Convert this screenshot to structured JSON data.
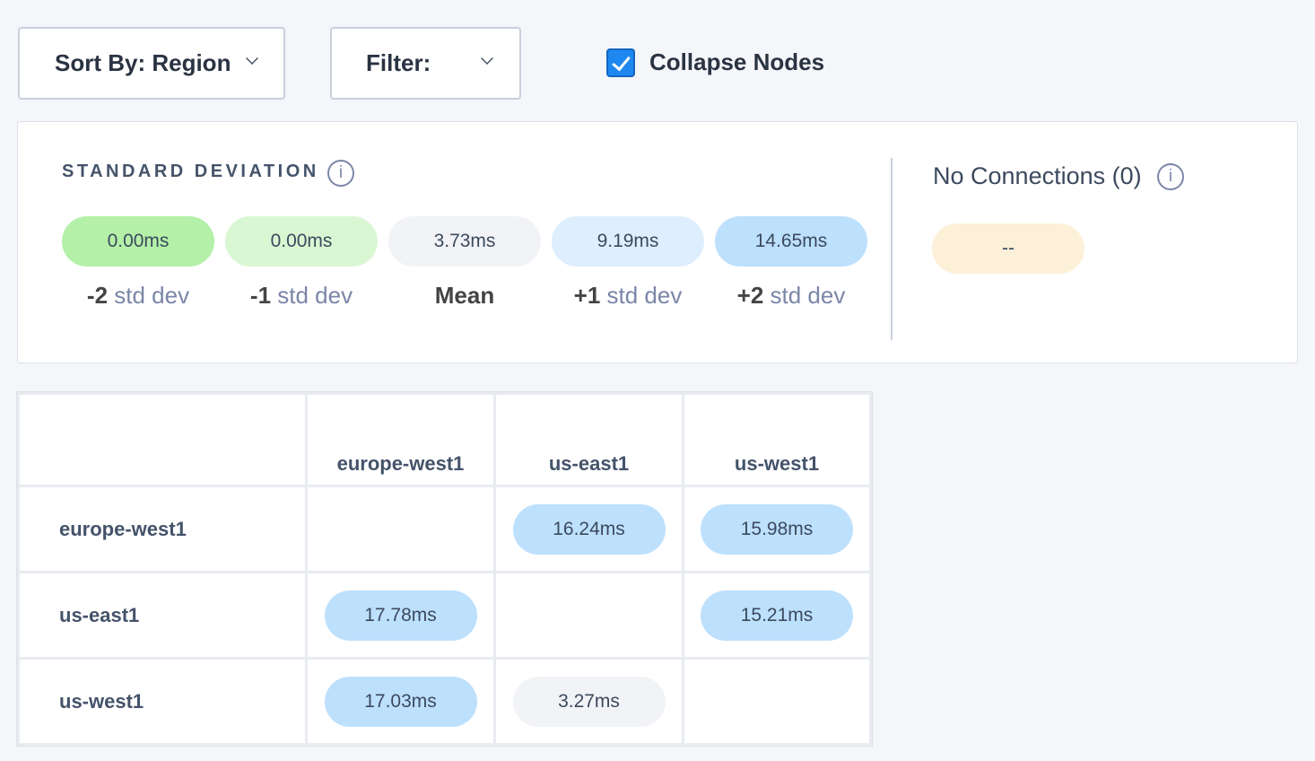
{
  "toolbar": {
    "sort_label": "Sort By: Region",
    "filter_label": "Filter:",
    "collapse_label": "Collapse Nodes",
    "collapse_checked": true
  },
  "legend": {
    "title": "STANDARD DEVIATION",
    "items": [
      {
        "value": "0.00ms",
        "prefix": "-2",
        "suffix": " std dev",
        "color": "#b4f0a8"
      },
      {
        "value": "0.00ms",
        "prefix": "-1",
        "suffix": " std dev",
        "color": "#d9f7d3"
      },
      {
        "value": "3.73ms",
        "prefix": "Mean",
        "suffix": "",
        "color": "#f1f3f7"
      },
      {
        "value": "9.19ms",
        "prefix": "+1",
        "suffix": " std dev",
        "color": "#dfeefc"
      },
      {
        "value": "14.65ms",
        "prefix": "+2",
        "suffix": " std dev",
        "color": "#bde0fd"
      }
    ],
    "no_connections_label": "No Connections (0)",
    "no_connections_value": "--",
    "no_connections_color": "#fdf0d9"
  },
  "matrix": {
    "columns": [
      "europe-west1",
      "us-east1",
      "us-west1"
    ],
    "rows": [
      {
        "name": "europe-west1",
        "cells": [
          null,
          {
            "v": "16.24ms",
            "c": "#bde0fd"
          },
          {
            "v": "15.98ms",
            "c": "#bde0fd"
          }
        ]
      },
      {
        "name": "us-east1",
        "cells": [
          {
            "v": "17.78ms",
            "c": "#bde0fd"
          },
          null,
          {
            "v": "15.21ms",
            "c": "#bde0fd"
          }
        ]
      },
      {
        "name": "us-west1",
        "cells": [
          {
            "v": "17.03ms",
            "c": "#bde0fd"
          },
          {
            "v": "3.27ms",
            "c": "#f1f3f7"
          },
          null
        ]
      }
    ]
  }
}
